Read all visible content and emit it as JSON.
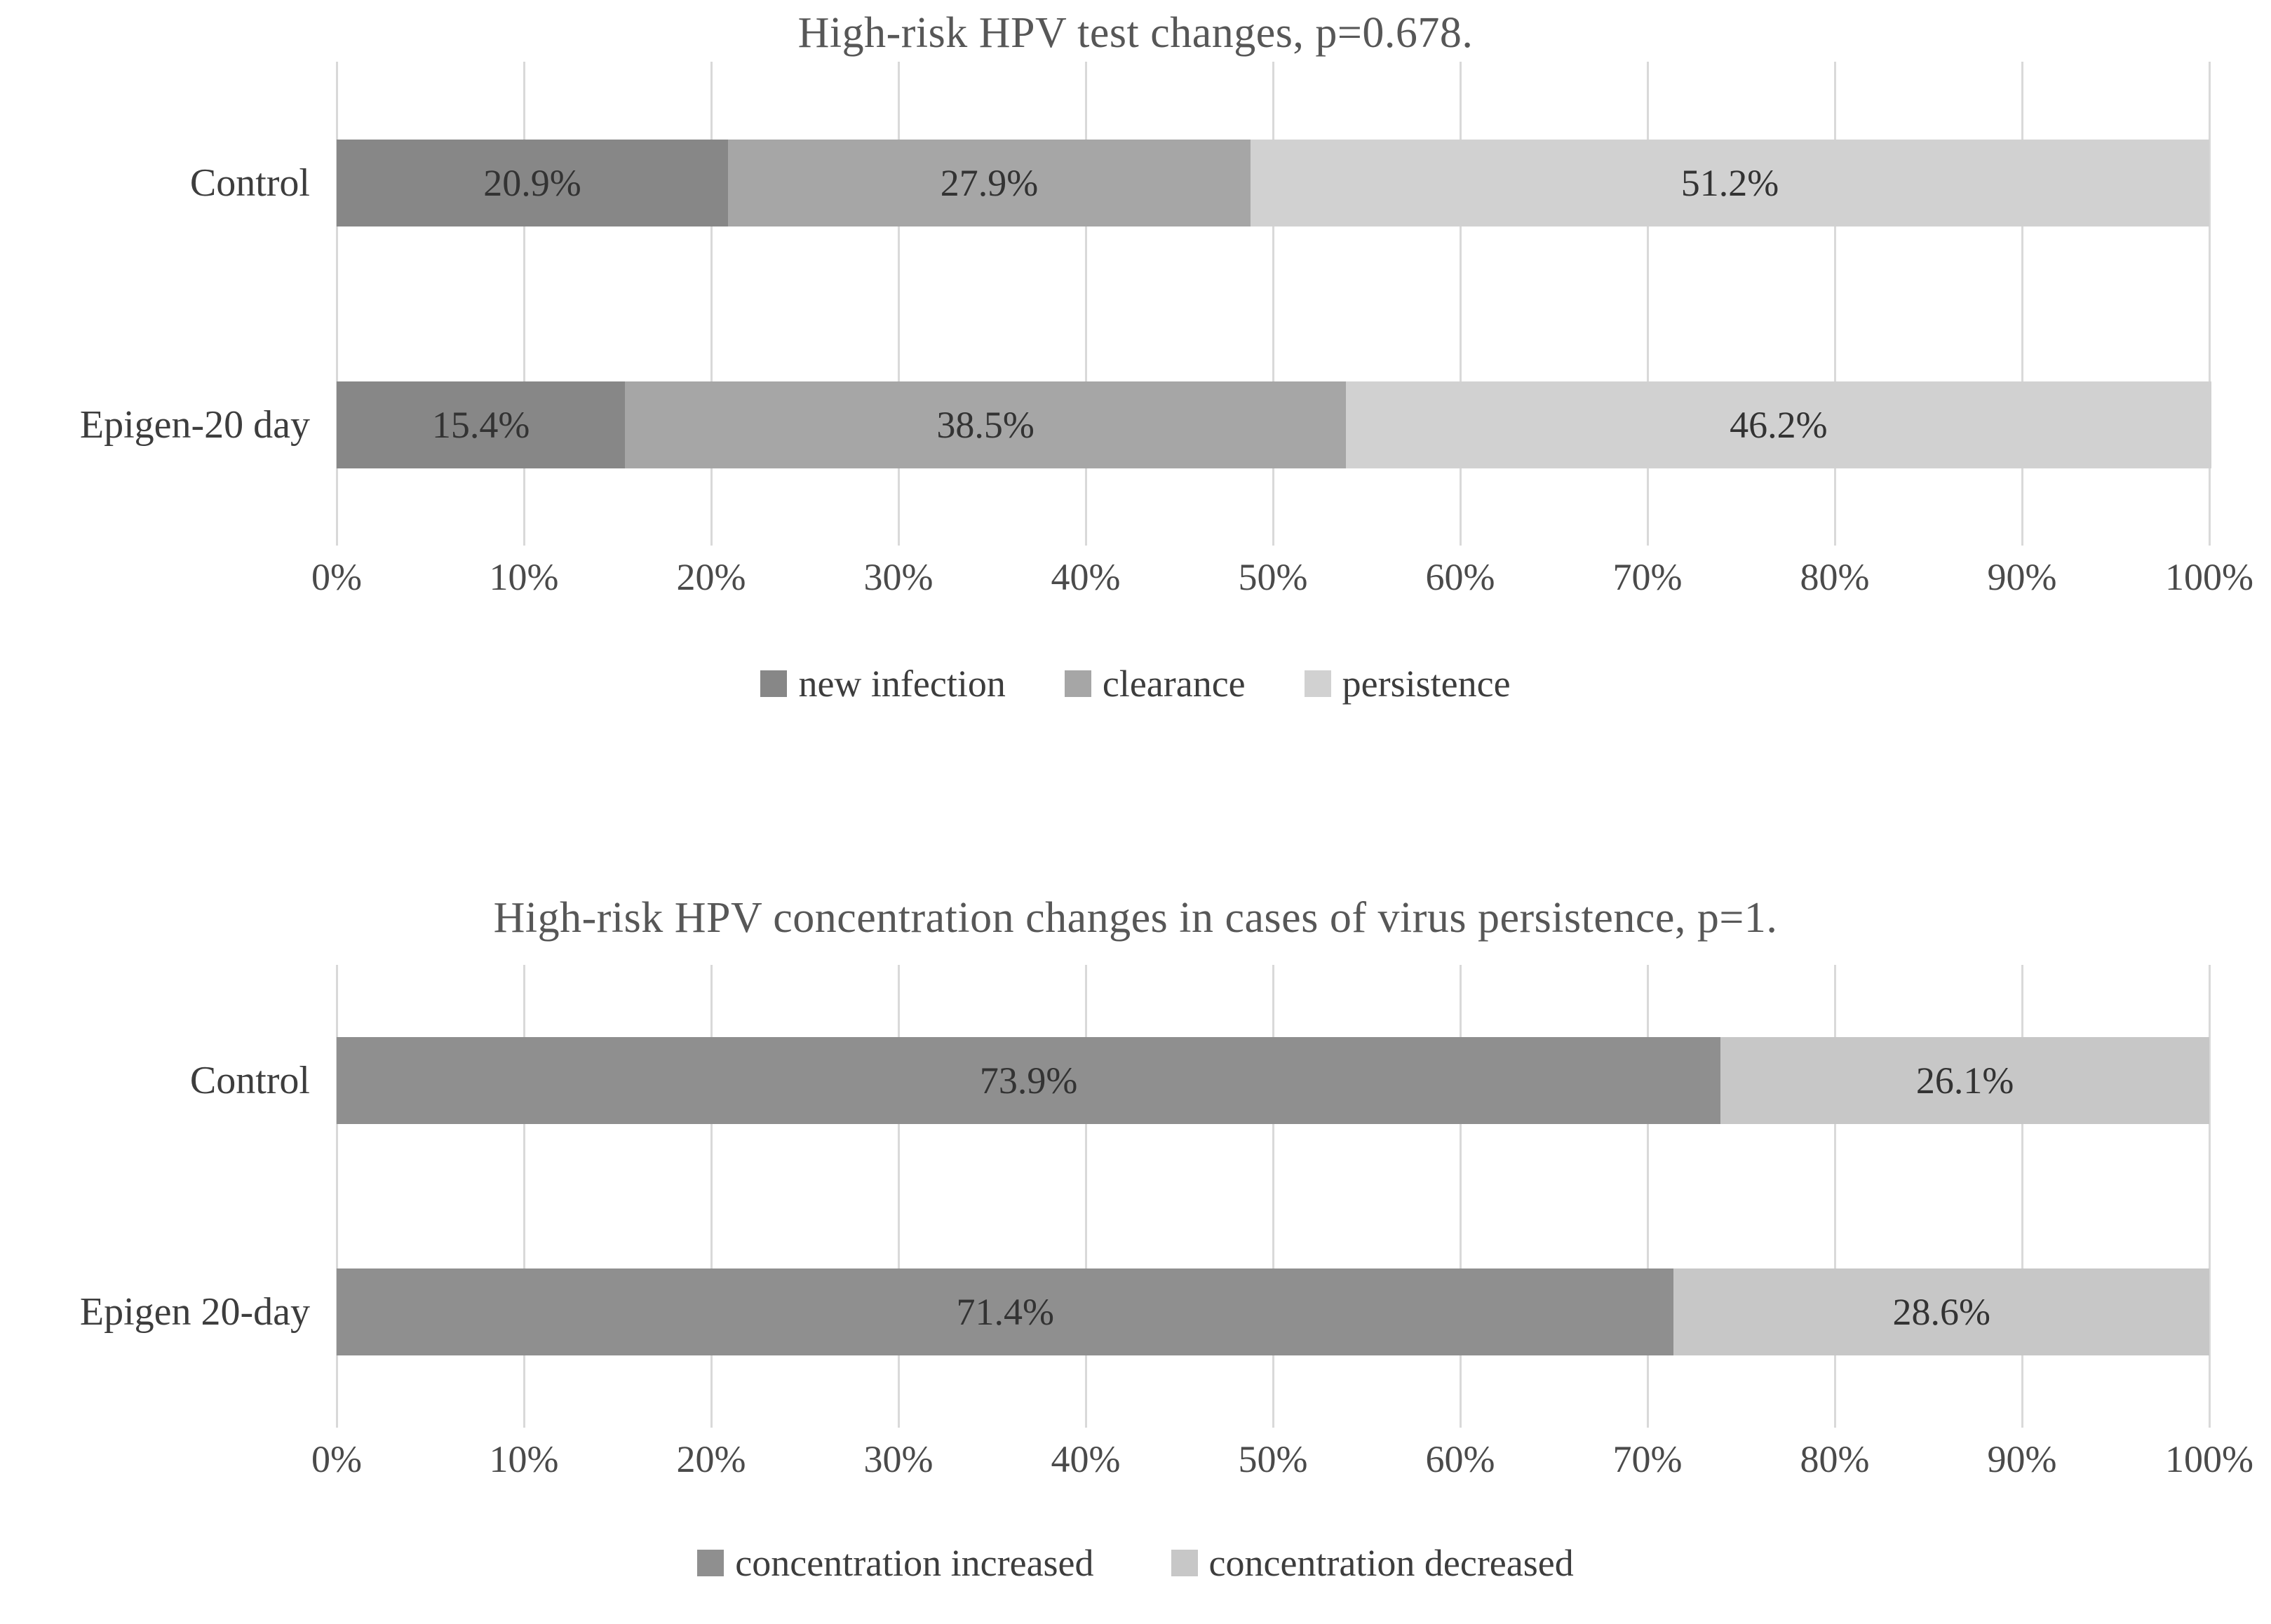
{
  "page": {
    "background": "#ffffff",
    "gridline_color": "#d9d9d9"
  },
  "chart_data": [
    {
      "type": "bar",
      "subtype": "stacked-horizontal-100pct",
      "title": "High-risk HPV test changes, p=0.678.",
      "categories": [
        "Control",
        "Epigen-20 day"
      ],
      "series": [
        {
          "name": "new infection",
          "color": "#878787",
          "values": [
            20.9,
            15.4
          ],
          "labels": [
            "20.9%",
            "15.4%"
          ]
        },
        {
          "name": "clearance",
          "color": "#a6a6a6",
          "values": [
            27.9,
            38.5
          ],
          "labels": [
            "27.9%",
            "38.5%"
          ]
        },
        {
          "name": "persistence",
          "color": "#d1d1d1",
          "values": [
            51.2,
            46.2
          ],
          "labels": [
            "51.2%",
            "46.2%"
          ]
        }
      ],
      "x_ticks": [
        "0%",
        "10%",
        "20%",
        "30%",
        "40%",
        "50%",
        "60%",
        "70%",
        "80%",
        "90%",
        "100%"
      ],
      "xlim": [
        0,
        100
      ],
      "grid": true,
      "legend_position": "bottom"
    },
    {
      "type": "bar",
      "subtype": "stacked-horizontal-100pct",
      "title": "High-risk HPV concentration changes in cases of virus persistence, p=1.",
      "categories": [
        "Control",
        "Epigen 20-day"
      ],
      "series": [
        {
          "name": "concentration increased",
          "color": "#8f8f8f",
          "values": [
            73.9,
            71.4
          ],
          "labels": [
            "73.9%",
            "71.4%"
          ]
        },
        {
          "name": "concentration decreased",
          "color": "#c7c7c7",
          "values": [
            26.1,
            28.6
          ],
          "labels": [
            "26.1%",
            "28.6%"
          ]
        }
      ],
      "x_ticks": [
        "0%",
        "10%",
        "20%",
        "30%",
        "40%",
        "50%",
        "60%",
        "70%",
        "80%",
        "90%",
        "100%"
      ],
      "xlim": [
        0,
        100
      ],
      "grid": true,
      "legend_position": "bottom"
    }
  ]
}
